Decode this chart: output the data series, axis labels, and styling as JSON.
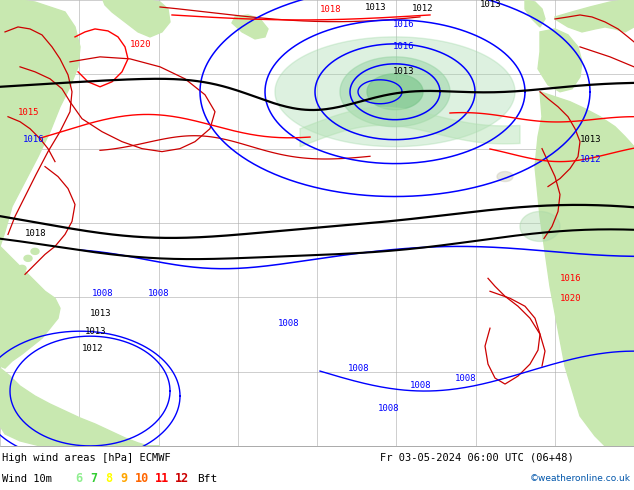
{
  "title_line1": "High wind areas [hPa] ECMWF",
  "title_line2": "Fr 03-05-2024 06:00 UTC (06+48)",
  "subtitle": "Wind 10m",
  "legend_values": [
    "6",
    "7",
    "8",
    "9",
    "10",
    "11",
    "12",
    "Bft"
  ],
  "legend_colors": [
    "#90ee90",
    "#32cd32",
    "#ffff00",
    "#ffa500",
    "#ff6600",
    "#ff0000",
    "#cc0000",
    "#000000"
  ],
  "credit": "©weatheronline.co.uk",
  "ocean_color": "#d8d8d8",
  "land_color": "#c8e8b0",
  "land_color2": "#b8d8a0",
  "border_color": "#cc0000",
  "grid_color": "#aaaaaa",
  "figwidth": 6.34,
  "figheight": 4.9,
  "dpi": 100
}
